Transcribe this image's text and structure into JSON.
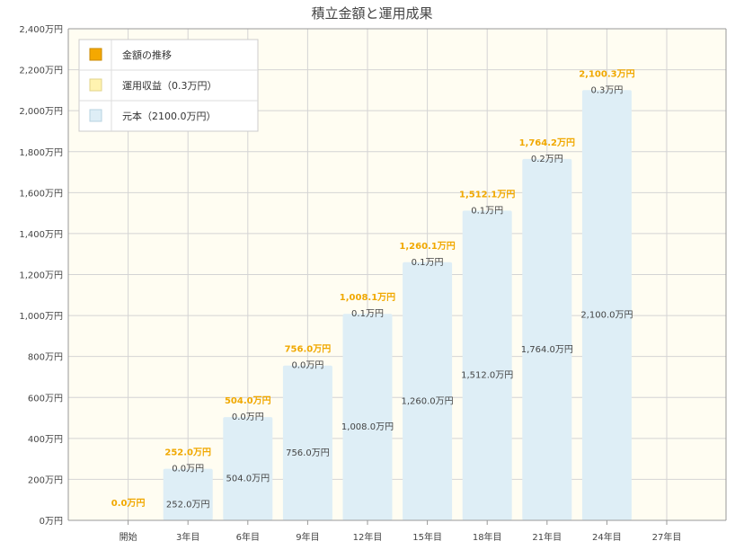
{
  "chart_data": {
    "type": "bar",
    "title": "積立金額と運用成果",
    "categories": [
      "開始",
      "3年目",
      "6年目",
      "9年目",
      "12年目",
      "15年目",
      "18年目",
      "21年目",
      "24年目",
      "27年目"
    ],
    "y_ticks": [
      0,
      200,
      400,
      600,
      800,
      1000,
      1200,
      1400,
      1600,
      1800,
      2000,
      2200,
      2400
    ],
    "y_tick_labels": [
      "0万円",
      "200万円",
      "400万円",
      "600万円",
      "800万円",
      "1,000万円",
      "1,200万円",
      "1,400万円",
      "1,600万円",
      "1,800万円",
      "2,000万円",
      "2,200万円",
      "2,400万円"
    ],
    "ylim": [
      0,
      2400
    ],
    "grid": true,
    "legend_position": "top-left",
    "legend": [
      {
        "name": "金額の推移",
        "color": "#f5a800"
      },
      {
        "name": "運用収益（0.3万円）",
        "color": "#fff3b0"
      },
      {
        "name": "元本（2100.0万円）",
        "color": "#deeef6"
      }
    ],
    "series": [
      {
        "name": "元本",
        "values": [
          0,
          252,
          504,
          756,
          1008,
          1260,
          1512,
          1764,
          2100,
          null
        ],
        "labels": [
          "",
          "252.0万円",
          "504.0万円",
          "756.0万円",
          "1,008.0万円",
          "1,260.0万円",
          "1,512.0万円",
          "1,764.0万円",
          "2,100.0万円",
          ""
        ]
      },
      {
        "name": "運用収益",
        "values": [
          0,
          0,
          0,
          0,
          0.1,
          0.1,
          0.1,
          0.2,
          0.3,
          null
        ],
        "labels": [
          "",
          "0.0万円",
          "0.0万円",
          "0.0万円",
          "0.1万円",
          "0.1万円",
          "0.1万円",
          "0.2万円",
          "0.3万円",
          ""
        ]
      },
      {
        "name": "金額の推移",
        "values": [
          0,
          252,
          504,
          756,
          1008.1,
          1260.1,
          1512.1,
          1764.2,
          2100.3,
          null
        ],
        "labels": [
          "0.0万円",
          "252.0万円",
          "504.0万円",
          "756.0万円",
          "1,008.1万円",
          "1,260.1万円",
          "1,512.1万円",
          "1,764.2万円",
          "2,100.3万円",
          ""
        ]
      }
    ]
  },
  "colors": {
    "plot_bg": "#fffdf2",
    "grid": "#d4d4d4",
    "bar": "#deeef6",
    "total_label": "#f0a800",
    "text": "#444444",
    "axis": "#999999"
  }
}
